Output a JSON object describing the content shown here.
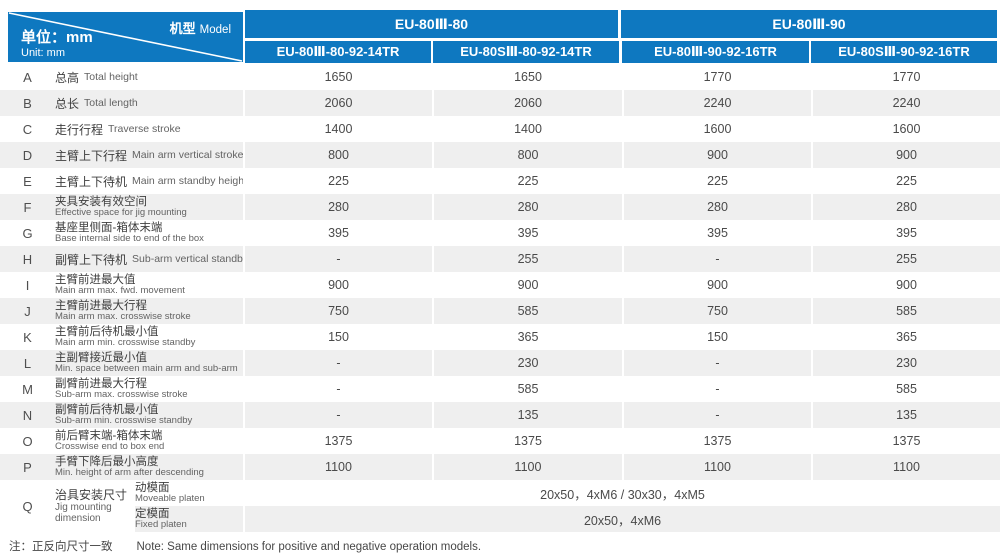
{
  "colors": {
    "header_blue": "#0e78c0",
    "row_gray": "#efefef"
  },
  "header": {
    "corner": {
      "model_zh": "机型",
      "model_en": "Model",
      "unit_zh": "单位：mm",
      "unit_en": "Unit: mm"
    },
    "groups": [
      {
        "label": "EU-80Ⅲ-80"
      },
      {
        "label": "EU-80Ⅲ-90"
      }
    ],
    "models": [
      "EU-80Ⅲ-80-92-14TR",
      "EU-80SⅢ-80-92-14TR",
      "EU-80Ⅲ-90-92-16TR",
      "EU-80SⅢ-90-92-16TR"
    ]
  },
  "rows": [
    {
      "letter": "A",
      "zh": "总高",
      "en": "Total height",
      "two": false,
      "values": [
        "1650",
        "1650",
        "1770",
        "1770"
      ]
    },
    {
      "letter": "B",
      "zh": "总长",
      "en": "Total length",
      "two": false,
      "values": [
        "2060",
        "2060",
        "2240",
        "2240"
      ]
    },
    {
      "letter": "C",
      "zh": "走行行程",
      "en": "Traverse stroke",
      "two": false,
      "values": [
        "1400",
        "1400",
        "1600",
        "1600"
      ]
    },
    {
      "letter": "D",
      "zh": "主臂上下行程",
      "en": "Main arm vertical stroke",
      "two": false,
      "values": [
        "800",
        "800",
        "900",
        "900"
      ]
    },
    {
      "letter": "E",
      "zh": "主臂上下待机",
      "en": "Main arm standby height",
      "two": false,
      "values": [
        "225",
        "225",
        "225",
        "225"
      ]
    },
    {
      "letter": "F",
      "zh": "夹具安装有效空间",
      "en": "Effective space for jig mounting",
      "two": true,
      "values": [
        "280",
        "280",
        "280",
        "280"
      ]
    },
    {
      "letter": "G",
      "zh": "基座里侧面-箱体末端",
      "en": "Base internal side to end of the box",
      "two": true,
      "values": [
        "395",
        "395",
        "395",
        "395"
      ]
    },
    {
      "letter": "H",
      "zh": "副臂上下待机",
      "en": "Sub-arm vertical standby",
      "two": false,
      "values": [
        "-",
        "255",
        "-",
        "255"
      ]
    },
    {
      "letter": "I",
      "zh": "主臂前进最大值",
      "en": "Main arm max. fwd. movement",
      "two": true,
      "values": [
        "900",
        "900",
        "900",
        "900"
      ]
    },
    {
      "letter": "J",
      "zh": "主臂前进最大行程",
      "en": "Main arm max. crosswise stroke",
      "two": true,
      "values": [
        "750",
        "585",
        "750",
        "585"
      ]
    },
    {
      "letter": "K",
      "zh": "主臂前后待机最小值",
      "en": "Main arm min. crosswise standby",
      "two": true,
      "values": [
        "150",
        "365",
        "150",
        "365"
      ]
    },
    {
      "letter": "L",
      "zh": "主副臂接近最小值",
      "en": "Min. space between main arm and sub-arm",
      "two": true,
      "values": [
        "-",
        "230",
        "-",
        "230"
      ]
    },
    {
      "letter": "M",
      "zh": "副臂前进最大行程",
      "en": "Sub-arm max. crosswise stroke",
      "two": true,
      "values": [
        "-",
        "585",
        "-",
        "585"
      ]
    },
    {
      "letter": "N",
      "zh": "副臂前后待机最小值",
      "en": "Sub-arm min. crosswise standby",
      "two": true,
      "values": [
        "-",
        "135",
        "-",
        "135"
      ]
    },
    {
      "letter": "O",
      "zh": "前后臂末端-箱体末端",
      "en": "Crosswise end to box end",
      "two": true,
      "values": [
        "1375",
        "1375",
        "1375",
        "1375"
      ]
    },
    {
      "letter": "P",
      "zh": "手臂下降后最小高度",
      "en": "Min. height of arm after descending",
      "two": true,
      "values": [
        "1100",
        "1100",
        "1100",
        "1100"
      ]
    }
  ],
  "jig_row": {
    "letter": "Q",
    "zh": "治具安装尺寸",
    "en": "Jig mounting dimension",
    "sub_rows": [
      {
        "zh": "动模面",
        "en": "Moveable platen",
        "value": "20x50，4xM6 / 30x30，4xM5"
      },
      {
        "zh": "定模面",
        "en": "Fixed platen",
        "value": "20x50，4xM6"
      }
    ]
  },
  "footer": {
    "note_zh": "注：正反向尺寸一致",
    "note_en": "Note: Same dimensions for positive and negative operation models."
  }
}
